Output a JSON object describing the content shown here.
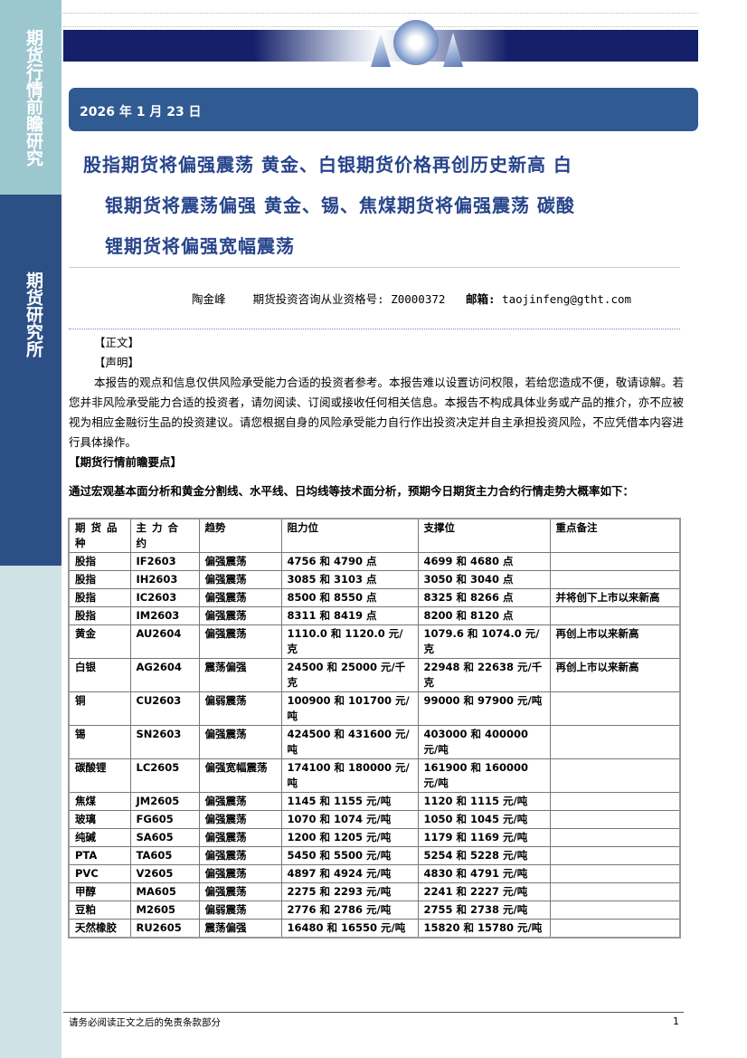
{
  "sidebar": {
    "title": "期货行情前瞻研究",
    "org": "期货研究所"
  },
  "header": {
    "date": "2026 年 1 月 23 日",
    "title_lines": [
      "股指期货将偏强震荡 黄金、白银期货价格再创历史新高 白",
      "银期货将震荡偏强 黄金、锡、焦煤期货将偏强震荡 碳酸",
      "锂期货将偏强宽幅震荡"
    ]
  },
  "author": {
    "name": "陶金峰",
    "qual_label": "期货投资咨询从业资格号:",
    "qual_no": "Z0000372",
    "email_label": "邮箱:",
    "email": "taojinfeng@gtht.com"
  },
  "body": {
    "section1": "【正文】",
    "section2": "【声明】",
    "disclaimer": "本报告的观点和信息仅供风险承受能力合适的投资者参考。本报告难以设置访问权限，若给您造成不便，敬请谅解。若您并非风险承受能力合适的投资者，请勿阅读、订阅或接收任何相关信息。本报告不构成具体业务或产品的推介，亦不应被视为相应金融衍生品的投资建议。请您根据自身的风险承受能力自行作出投资决定并自主承担投资风险，不应凭借本内容进行具体操作。",
    "section3": "【期货行情前瞻要点】",
    "lead": "通过宏观基本面分析和黄金分割线、水平线、日均线等技术面分析，预期今日期货主力合约行情走势大概率如下："
  },
  "table": {
    "headers": [
      "期货品种",
      "主力合约",
      "趋势",
      "阻力位",
      "支撑位",
      "重点备注"
    ],
    "rows": [
      [
        "股指",
        "IF2603",
        "偏强震荡",
        "4756 和 4790 点",
        "4699 和 4680 点",
        ""
      ],
      [
        "股指",
        "IH2603",
        "偏强震荡",
        "3085 和 3103 点",
        "3050 和 3040 点",
        ""
      ],
      [
        "股指",
        "IC2603",
        "偏强震荡",
        "8500 和 8550 点",
        "8325 和 8266 点",
        "并将创下上市以来新高"
      ],
      [
        "股指",
        "IM2603",
        "偏强震荡",
        "8311 和 8419 点",
        "8200 和 8120 点",
        ""
      ],
      [
        "黄金",
        "AU2604",
        "偏强震荡",
        "1110.0 和 1120.0 元/克",
        "1079.6 和 1074.0 元/克",
        "再创上市以来新高"
      ],
      [
        "白银",
        "AG2604",
        "震荡偏强",
        "24500 和 25000 元/千克",
        "22948 和 22638 元/千克",
        "再创上市以来新高"
      ],
      [
        "铜",
        "CU2603",
        "偏弱震荡",
        "100900 和 101700 元/吨",
        "99000 和 97900 元/吨",
        ""
      ],
      [
        "锡",
        "SN2603",
        "偏强震荡",
        "424500 和 431600 元/吨",
        "403000 和 400000 元/吨",
        ""
      ],
      [
        "碳酸锂",
        "LC2605",
        "偏强宽幅震荡",
        "174100 和 180000 元/吨",
        "161900 和 160000 元/吨",
        ""
      ],
      [
        "焦煤",
        "JM2605",
        "偏强震荡",
        "1145 和 1155 元/吨",
        "1120 和 1115 元/吨",
        ""
      ],
      [
        "玻璃",
        "FG605",
        "偏强震荡",
        "1070 和 1074 元/吨",
        "1050 和 1045 元/吨",
        ""
      ],
      [
        "纯碱",
        "SA605",
        "偏强震荡",
        "1200 和 1205 元/吨",
        "1179 和 1169 元/吨",
        ""
      ],
      [
        "PTA",
        "TA605",
        "偏强震荡",
        "5450 和 5500 元/吨",
        "5254 和 5228 元/吨",
        ""
      ],
      [
        "PVC",
        "V2605",
        "偏强震荡",
        "4897 和 4924 元/吨",
        "4830 和 4791 元/吨",
        ""
      ],
      [
        "甲醇",
        "MA605",
        "偏强震荡",
        "2275 和 2293 元/吨",
        "2241 和 2227 元/吨",
        ""
      ],
      [
        "豆粕",
        "M2605",
        "偏弱震荡",
        "2776 和 2786 元/吨",
        "2755 和 2738 元/吨",
        ""
      ],
      [
        "天然橡胶",
        "RU2605",
        "震荡偏强",
        "16480 和 16550 元/吨",
        "15820 和 15780 元/吨",
        ""
      ]
    ]
  },
  "footer": {
    "note": "请务必阅读正文之后的免责条款部分",
    "page": "1"
  }
}
